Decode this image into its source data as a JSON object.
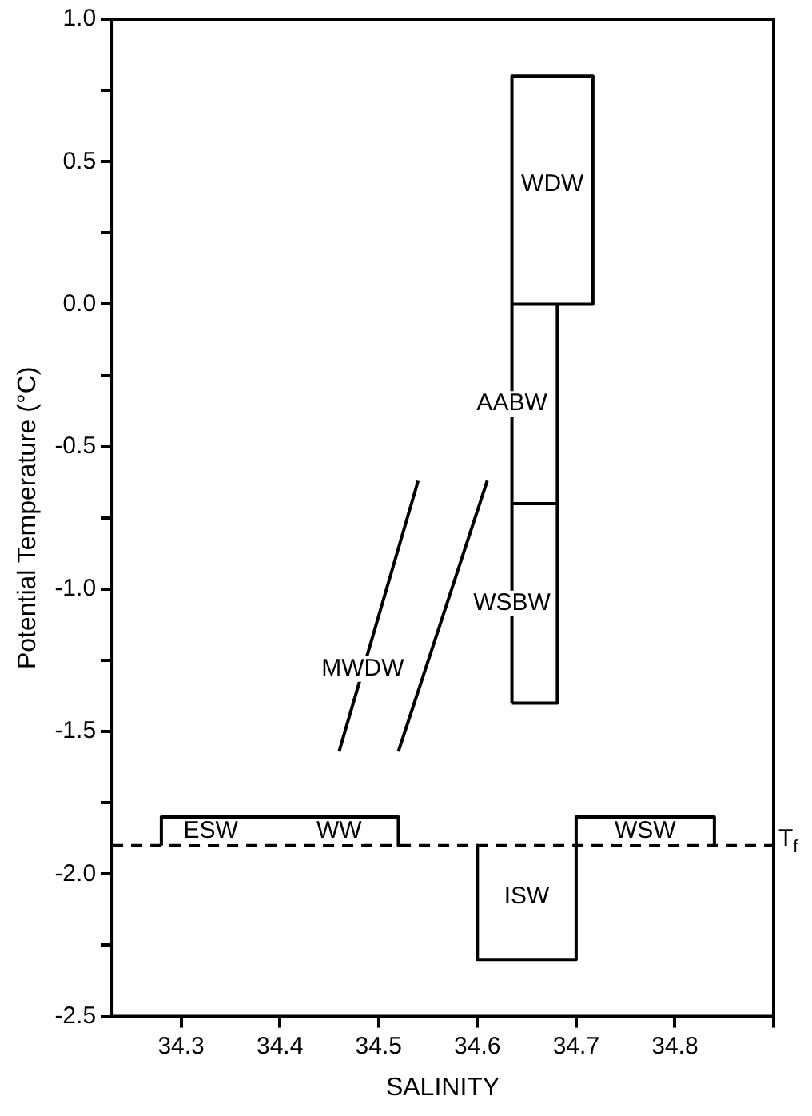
{
  "chart_data": {
    "type": "line",
    "xlabel": "SALINITY",
    "ylabel": "Potential Temperature (°C)",
    "xlim": [
      34.23,
      34.9
    ],
    "ylim": [
      -2.5,
      1.0
    ],
    "xticks": [
      {
        "value": 34.3,
        "label": "34.3"
      },
      {
        "value": 34.4,
        "label": "34.4"
      },
      {
        "value": 34.5,
        "label": "34.5"
      },
      {
        "value": 34.6,
        "label": "34.6"
      },
      {
        "value": 34.7,
        "label": "34.7"
      },
      {
        "value": 34.8,
        "label": "34.8"
      },
      {
        "value": 34.9,
        "label": null
      }
    ],
    "yticks": [
      {
        "value": -2.5,
        "label": "-2.5"
      },
      {
        "value": -2.25,
        "label": null
      },
      {
        "value": -2.0,
        "label": "-2.0"
      },
      {
        "value": -1.75,
        "label": null
      },
      {
        "value": -1.5,
        "label": "-1.5"
      },
      {
        "value": -1.25,
        "label": null
      },
      {
        "value": -1.0,
        "label": "-1.0"
      },
      {
        "value": -0.75,
        "label": null
      },
      {
        "value": -0.5,
        "label": "-0.5"
      },
      {
        "value": -0.25,
        "label": null
      },
      {
        "value": 0.0,
        "label": "0.0"
      },
      {
        "value": 0.25,
        "label": null
      },
      {
        "value": 0.5,
        "label": "0.5"
      },
      {
        "value": 0.75,
        "label": null
      },
      {
        "value": 1.0,
        "label": "1.0"
      }
    ],
    "grid": false,
    "legend": false,
    "marker": "none",
    "line_style": "solid",
    "series": [
      {
        "color": "#000000",
        "x": [
          34.635,
          34.635,
          34.717,
          34.717,
          34.635,
          null,
          34.681,
          34.681,
          34.635,
          null,
          34.635,
          34.681,
          null,
          34.46,
          34.54,
          null,
          34.52,
          34.61,
          null,
          34.28,
          34.28,
          34.52,
          34.52,
          null,
          34.6,
          34.6,
          34.7,
          34.7,
          34.84,
          34.84
        ],
        "values": [
          -1.4,
          0.8,
          0.8,
          0.0,
          0.0,
          null,
          0.0,
          -1.4,
          -1.4,
          null,
          -0.7,
          -0.7,
          null,
          -1.57,
          -0.62,
          null,
          -1.57,
          -0.62,
          null,
          -1.9,
          -1.8,
          -1.8,
          -1.9,
          null,
          -1.9,
          -2.3,
          -2.3,
          -1.8,
          -1.8,
          -1.9
        ]
      }
    ],
    "ref_lines": [
      {
        "axis": "y",
        "value": -1.9,
        "label": "T$_{f}$",
        "color": "#000000",
        "line_style": "dashed"
      }
    ],
    "annotations": [
      {
        "text": "WDW",
        "x": 34.676,
        "y": 0.42
      },
      {
        "text": "AABW",
        "x": 34.635,
        "y": -0.35
      },
      {
        "text": "WSBW",
        "x": 34.635,
        "y": -1.05
      },
      {
        "text": "MWDW",
        "x": 34.484,
        "y": -1.28
      },
      {
        "text": "ESW",
        "x": 34.33,
        "y": -1.85
      },
      {
        "text": "WW",
        "x": 34.46,
        "y": -1.85
      },
      {
        "text": "WSW",
        "x": 34.77,
        "y": -1.85
      },
      {
        "text": "ISW",
        "x": 34.65,
        "y": -2.08
      }
    ]
  }
}
